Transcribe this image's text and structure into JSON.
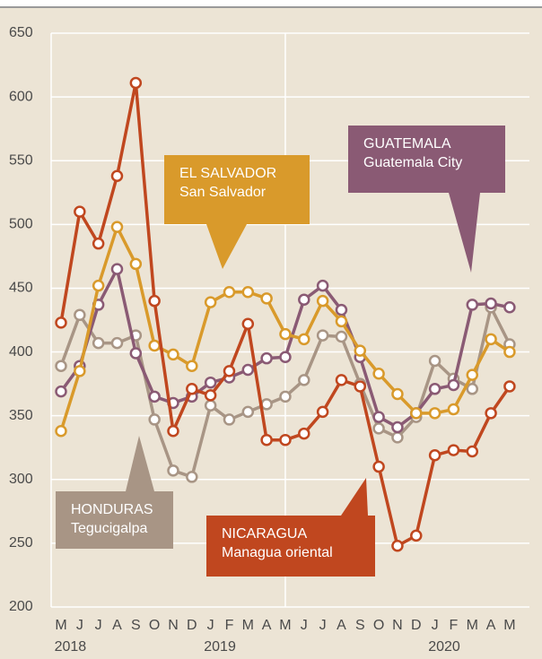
{
  "chart_data": {
    "type": "line",
    "categories": [
      "M",
      "J",
      "J",
      "A",
      "S",
      "O",
      "N",
      "D",
      "J",
      "F",
      "M",
      "A",
      "M",
      "J",
      "J",
      "A",
      "S",
      "O",
      "N",
      "D",
      "J",
      "F",
      "M",
      "A",
      "M"
    ],
    "years": [
      "2018",
      "2019",
      "2020"
    ],
    "ylim": [
      200,
      650
    ],
    "yticks": [
      200,
      250,
      300,
      350,
      400,
      450,
      500,
      550,
      600,
      650
    ],
    "grid": true,
    "series": [
      {
        "name": "HONDURAS",
        "city": "Tegucigalpa",
        "color": "#a89585",
        "values": [
          389,
          429,
          407,
          407,
          413,
          347,
          307,
          302,
          358,
          347,
          353,
          359,
          365,
          378,
          413,
          412,
          375,
          340,
          333,
          349,
          393,
          379,
          371,
          435,
          406
        ]
      },
      {
        "name": "GUATEMALA",
        "city": "Guatemala City",
        "color": "#8a5a74",
        "values": [
          369,
          389,
          437,
          465,
          399,
          365,
          360,
          365,
          376,
          380,
          386,
          395,
          396,
          441,
          452,
          433,
          396,
          349,
          341,
          352,
          371,
          374,
          437,
          438,
          435
        ]
      },
      {
        "name": "EL SALVADOR",
        "city": "San Salvador",
        "color": "#d99a2b",
        "values": [
          338,
          385,
          452,
          498,
          469,
          405,
          398,
          389,
          439,
          447,
          447,
          442,
          414,
          410,
          440,
          424,
          401,
          383,
          367,
          352,
          352,
          355,
          382,
          410,
          400
        ]
      },
      {
        "name": "NICARAGUA",
        "city": "Managua oriental",
        "color": "#c0471f",
        "values": [
          423,
          510,
          485,
          538,
          611,
          440,
          338,
          371,
          366,
          385,
          422,
          331,
          331,
          336,
          353,
          378,
          373,
          310,
          248,
          256,
          319,
          323,
          322,
          352,
          373
        ]
      }
    ]
  }
}
